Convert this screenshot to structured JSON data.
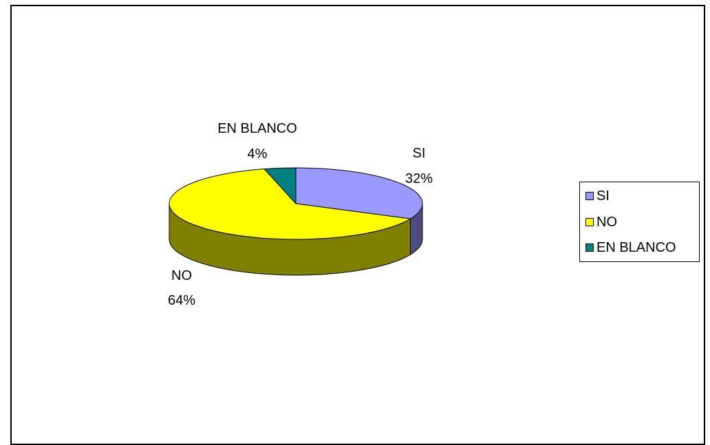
{
  "chart_data": {
    "type": "pie",
    "categories": [
      "SI",
      "NO",
      "EN BLANCO"
    ],
    "values": [
      32,
      64,
      4
    ],
    "value_labels": [
      "32%",
      "64%",
      "4%"
    ],
    "colors": [
      "#9999ff",
      "#ffff00",
      "#008080"
    ],
    "side_colors": [
      "#4d4d80",
      "#808000",
      "#004040"
    ],
    "legend": {
      "position": "right",
      "entries": [
        "SI",
        "NO",
        "EN BLANCO"
      ]
    },
    "style": "3d"
  }
}
